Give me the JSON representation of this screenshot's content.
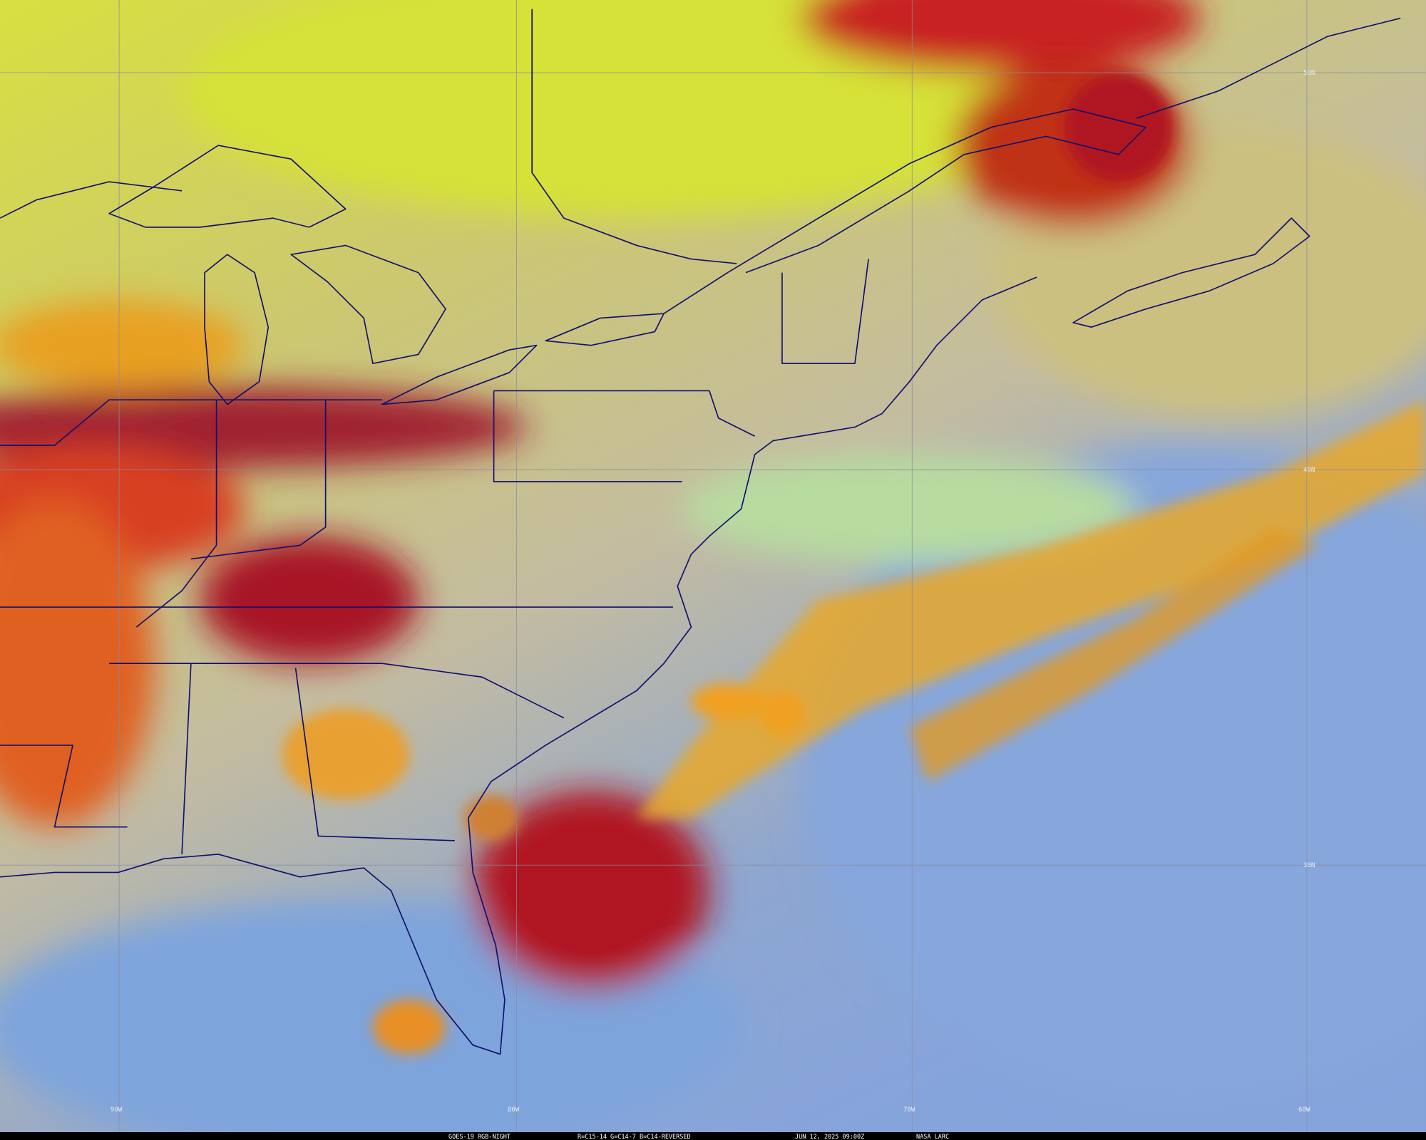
{
  "map": {
    "latitude_labels": [
      "50N",
      "40N",
      "30N"
    ],
    "longitude_labels": [
      "90W",
      "80W",
      "70W",
      "60W"
    ],
    "footer": {
      "product": "GOES-19 RGB-NIGHT",
      "channels": "R=C15-14 G=C14-7 B=C14-REVERSED",
      "time": "JUN 12, 2025 09:00Z",
      "source": "NASA LARC"
    }
  }
}
